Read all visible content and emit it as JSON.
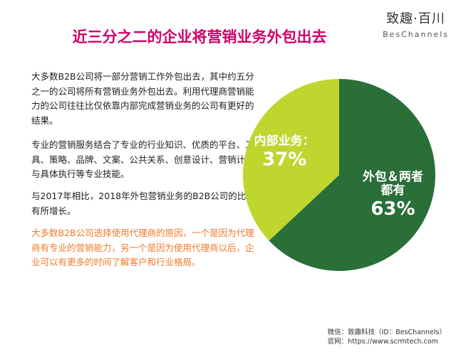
{
  "logo": {
    "cn": "致趣·百川",
    "en": "BesChannels"
  },
  "title": "近三分之二的企业将营销业务外包出去",
  "paragraphs": [
    "大多数B2B公司将一部分营销工作外包出去，其中约五分之一的公司将所有营销业务外包出去。利用代理商营销能力的公司往往比仅依靠内部完成营销业务的公司有更好的结果。",
    "专业的营销服务结合了专业的行业知识、优质的平台、工具、策略、品牌、文案、公共关系、创意设计、营销计划与具体执行等专业技能。",
    "与2017年相比，2018年外包营销业务的B2B公司的比例有所增长。",
    "大多数B2B公司选择使用代理商的原因，一个是因为代理商有专业的营销能力，另一个是因为使用代理商以后，企业可以有更多的时间了解客户和行业格局。"
  ],
  "colors": {
    "title": "#d1006a",
    "highlight": "#f07a2a",
    "outsource": "#2a6e38",
    "inhouse": "#bed62e"
  },
  "chart_data": {
    "type": "pie",
    "title": "",
    "slices": [
      {
        "label_lines": [
          "外包＆两者",
          "都有"
        ],
        "value": 63,
        "value_label": "63%",
        "color": "#2a6e38"
      },
      {
        "label_lines": [
          "内部业务："
        ],
        "value": 37,
        "value_label": "37%",
        "color": "#bed62e"
      }
    ]
  },
  "footer": {
    "line1": "微信：致趣科技（ID：BesChannels）",
    "line2": "官网：https://www.scrmtech.com"
  }
}
